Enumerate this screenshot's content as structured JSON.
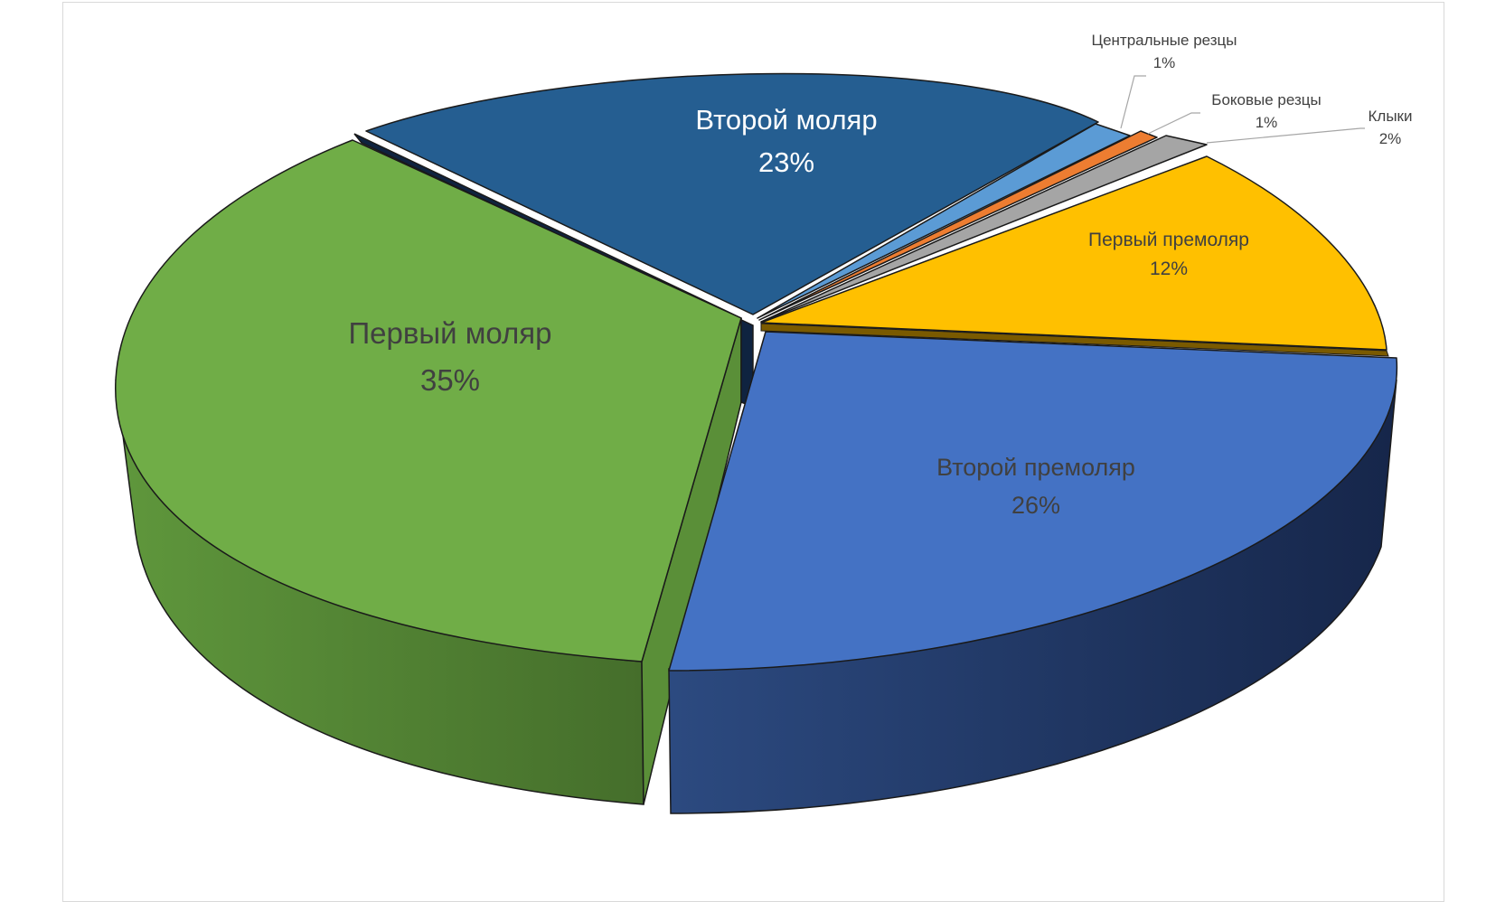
{
  "chart_data": {
    "type": "pie",
    "title": "",
    "slices": [
      {
        "label": "Центральные резцы",
        "value": 1,
        "pct_text": "1%",
        "color": "#5b9bd5"
      },
      {
        "label": "Боковые резцы",
        "value": 1,
        "pct_text": "1%",
        "color": "#ed7d31"
      },
      {
        "label": "Клыки",
        "value": 2,
        "pct_text": "2%",
        "color": "#a5a5a5"
      },
      {
        "label": "Первый премоляр",
        "value": 12,
        "pct_text": "12%",
        "color": "#ffc000"
      },
      {
        "label": "Второй премоляр",
        "value": 26,
        "pct_text": "26%",
        "color": "#4472c4"
      },
      {
        "label": "Первый моляр",
        "value": 35,
        "pct_text": "35%",
        "color": "#70ad47"
      },
      {
        "label": "Второй моляр",
        "value": 23,
        "pct_text": "23%",
        "color": "#255e91"
      }
    ],
    "legend": "none",
    "style": "3d-exploded"
  }
}
